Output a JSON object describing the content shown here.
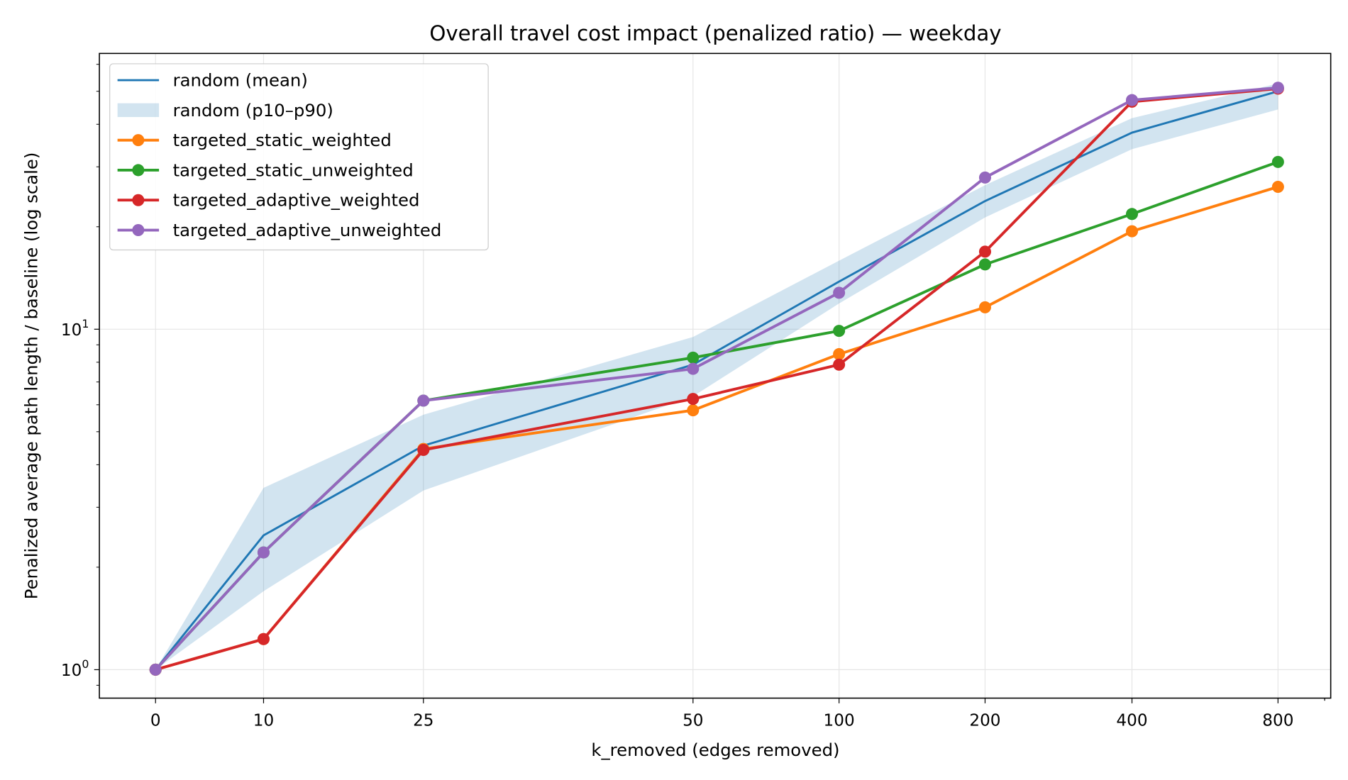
{
  "chart_data": {
    "type": "line",
    "title": "Overall travel cost impact (penalized ratio) — weekday",
    "xlabel": "k_removed (edges removed)",
    "ylabel": "Penalized average path length / baseline (log scale)",
    "yscale": "log",
    "ylim": [
      0.825,
      64.6
    ],
    "grid": true,
    "legend_position": "top-left",
    "x": [
      0,
      10,
      25,
      50,
      100,
      200,
      400,
      800
    ],
    "x_tick_labels": [
      "0",
      "10",
      "25",
      "50",
      "100",
      "200",
      "400",
      "800"
    ],
    "y_ticks": [
      {
        "value": 1,
        "base": "10",
        "exp": "0"
      },
      {
        "value": 10,
        "base": "10",
        "exp": "1"
      }
    ],
    "band": {
      "name": "random (p10–p90)",
      "color": "#1f77b4",
      "lower": [
        1,
        1.7,
        3.36,
        6.35,
        11.9,
        21.3,
        33.8,
        44.2
      ],
      "upper": [
        1,
        3.42,
        5.61,
        9.49,
        15.9,
        26.5,
        41.7,
        52.7
      ]
    },
    "series": [
      {
        "name": "random (mean)",
        "color": "#1f77b4",
        "markers": false,
        "values": [
          1,
          2.48,
          4.55,
          7.87,
          13.8,
          23.8,
          37.8,
          50.0
        ]
      },
      {
        "name": "targeted_static_weighted",
        "color": "#ff7f0e",
        "markers": true,
        "values": [
          1,
          1.23,
          4.45,
          5.78,
          8.45,
          11.6,
          19.4,
          26.2
        ]
      },
      {
        "name": "targeted_static_unweighted",
        "color": "#2ca02c",
        "markers": true,
        "values": [
          1,
          2.21,
          6.17,
          8.25,
          9.89,
          15.5,
          21.8,
          31.0
        ]
      },
      {
        "name": "targeted_adaptive_weighted",
        "color": "#d62728",
        "markers": true,
        "values": [
          1,
          1.23,
          4.42,
          6.24,
          7.87,
          16.9,
          46.6,
          50.9
        ]
      },
      {
        "name": "targeted_adaptive_unweighted",
        "color": "#9467bd",
        "markers": true,
        "values": [
          1,
          2.21,
          6.17,
          7.65,
          12.8,
          27.9,
          47.1,
          51.2
        ]
      }
    ]
  }
}
